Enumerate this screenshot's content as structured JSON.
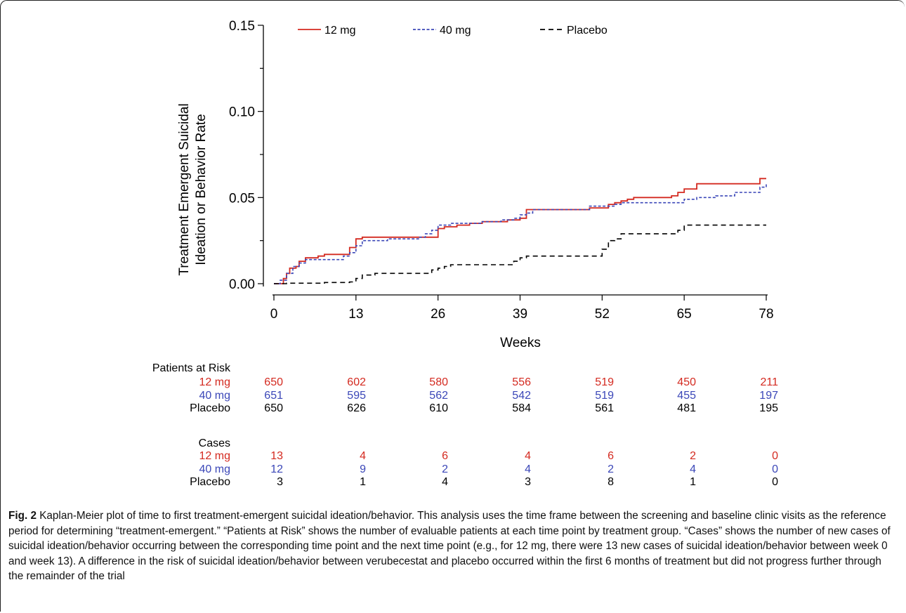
{
  "chart_data": {
    "type": "line",
    "title": "",
    "xlabel": "Weeks",
    "ylabel": "Treatment Emergent Suicidal Ideation or Behavior Rate",
    "ylabel_lines": [
      "Treatment Emergent Suicidal",
      "Ideation or Behavior Rate"
    ],
    "xlim": [
      0,
      78
    ],
    "ylim": [
      0,
      0.15
    ],
    "xticks": [
      0,
      13,
      26,
      39,
      52,
      65,
      78
    ],
    "yticks": [
      0.0,
      0.05,
      0.1,
      0.15
    ],
    "ytick_labels": [
      "0.00",
      "0.05",
      "0.10",
      "0.15"
    ],
    "legend_placement": "top",
    "grid": false,
    "series": [
      {
        "name": "12 mg",
        "color": "#d42a20",
        "style": "solid",
        "x": [
          0,
          1.5,
          2,
          2.5,
          3,
          3.5,
          4,
          4.5,
          5,
          7,
          8,
          10,
          12,
          13,
          14,
          15,
          20,
          25,
          26,
          27,
          28,
          29,
          31,
          33,
          35,
          37,
          39,
          40,
          45,
          50,
          53,
          54,
          55,
          56,
          57,
          61,
          63,
          64,
          65,
          67,
          70,
          75,
          77,
          78
        ],
        "y": [
          0,
          0.003,
          0.006,
          0.009,
          0.009,
          0.01,
          0.013,
          0.013,
          0.015,
          0.016,
          0.017,
          0.017,
          0.021,
          0.026,
          0.027,
          0.027,
          0.027,
          0.027,
          0.032,
          0.033,
          0.033,
          0.034,
          0.035,
          0.036,
          0.036,
          0.037,
          0.038,
          0.043,
          0.043,
          0.044,
          0.046,
          0.047,
          0.048,
          0.049,
          0.05,
          0.05,
          0.051,
          0.053,
          0.055,
          0.058,
          0.058,
          0.058,
          0.061,
          0.061
        ]
      },
      {
        "name": "40 mg",
        "color": "#3b47b8",
        "style": "dotted",
        "x": [
          0,
          1,
          2,
          3,
          4,
          5,
          7,
          9,
          11,
          12,
          13,
          14,
          15,
          18,
          23,
          24,
          25,
          26,
          27,
          28,
          30,
          33,
          36,
          38,
          39,
          40,
          41,
          45,
          50,
          52,
          54,
          55,
          58,
          62,
          64,
          65,
          67,
          70,
          73,
          77,
          78
        ],
        "y": [
          0,
          0.002,
          0.006,
          0.01,
          0.012,
          0.014,
          0.014,
          0.014,
          0.016,
          0.018,
          0.022,
          0.025,
          0.025,
          0.026,
          0.027,
          0.029,
          0.031,
          0.034,
          0.034,
          0.035,
          0.035,
          0.036,
          0.037,
          0.038,
          0.04,
          0.041,
          0.043,
          0.043,
          0.045,
          0.045,
          0.046,
          0.047,
          0.047,
          0.047,
          0.047,
          0.049,
          0.05,
          0.051,
          0.053,
          0.056,
          0.058
        ]
      },
      {
        "name": "Placebo",
        "color": "#000000",
        "style": "dashed",
        "x": [
          0,
          2,
          8,
          12,
          13,
          14,
          16,
          20,
          24,
          25,
          26,
          27,
          28,
          30,
          33,
          37,
          38,
          39,
          40,
          43,
          46,
          50,
          51,
          52,
          53,
          54,
          55,
          58,
          60,
          62,
          64,
          65,
          70,
          78
        ],
        "y": [
          0,
          0.0003,
          0.0007,
          0.001,
          0.003,
          0.005,
          0.006,
          0.006,
          0.006,
          0.008,
          0.009,
          0.01,
          0.011,
          0.011,
          0.011,
          0.011,
          0.013,
          0.015,
          0.016,
          0.016,
          0.016,
          0.016,
          0.016,
          0.02,
          0.025,
          0.026,
          0.029,
          0.029,
          0.029,
          0.029,
          0.031,
          0.034,
          0.034,
          0.034
        ]
      }
    ]
  },
  "risk_table": {
    "patients_heading": "Patients at Risk",
    "cases_heading": "Cases",
    "patients": [
      {
        "label": "12 mg",
        "color": "#d42a20",
        "values": [
          "650",
          "602",
          "580",
          "556",
          "519",
          "450",
          "211"
        ]
      },
      {
        "label": "40 mg",
        "color": "#3b47b8",
        "values": [
          "651",
          "595",
          "562",
          "542",
          "519",
          "455",
          "197"
        ]
      },
      {
        "label": "Placebo",
        "color": "#000000",
        "values": [
          "650",
          "626",
          "610",
          "584",
          "561",
          "481",
          "195"
        ]
      }
    ],
    "cases": [
      {
        "label": "12 mg",
        "color": "#d42a20",
        "values": [
          "13",
          "4",
          "6",
          "4",
          "6",
          "2",
          "0"
        ]
      },
      {
        "label": "40 mg",
        "color": "#3b47b8",
        "values": [
          "12",
          "9",
          "2",
          "4",
          "2",
          "4",
          "0"
        ]
      },
      {
        "label": "Placebo",
        "color": "#000000",
        "values": [
          "3",
          "1",
          "4",
          "3",
          "8",
          "1",
          "0"
        ]
      }
    ]
  },
  "caption": {
    "label": "Fig. 2",
    "text": "Kaplan-Meier plot of time to first treatment-emergent suicidal ideation/behavior. This analysis uses the time frame between the screening and baseline clinic visits as the reference period for determining “treatment-emergent.” “Patients at Risk” shows the number of evaluable patients at each time point by treatment group. “Cases” shows the number of new cases of suicidal ideation/behavior occurring between the corresponding time point and the next time point (e.g., for 12 mg, there were 13 new cases of suicidal ideation/behavior between week 0 and week 13). A difference in the risk of suicidal ideation/behavior between verubecestat and placebo occurred within the first 6 months of treatment but did not progress further through the remainder of the trial"
  }
}
